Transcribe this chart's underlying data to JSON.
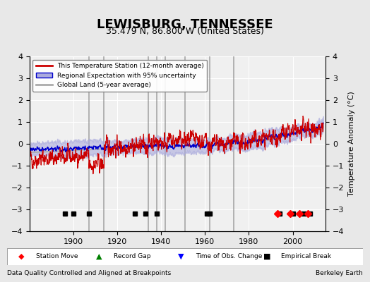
{
  "title": "LEWISBURG, TENNESSEE",
  "subtitle": "35.479 N, 86.800 W (United States)",
  "ylabel": "Temperature Anomaly (°C)",
  "xlabel_bottom_left": "Data Quality Controlled and Aligned at Breakpoints",
  "xlabel_bottom_right": "Berkeley Earth",
  "ylim": [
    -4,
    4
  ],
  "xlim": [
    1880,
    2015
  ],
  "xticks": [
    1900,
    1920,
    1940,
    1960,
    1980,
    2000
  ],
  "yticks": [
    -4,
    -3,
    -2,
    -1,
    0,
    1,
    2,
    3,
    4
  ],
  "background_color": "#e8e8e8",
  "plot_bg_color": "#f0f0f0",
  "grid_color": "#ffffff",
  "vertical_lines": [
    1907,
    1914,
    1934,
    1938,
    1942,
    1951,
    1962,
    1973
  ],
  "empirical_breaks": [
    1896,
    1900,
    1907,
    1928,
    1933,
    1938,
    1961,
    1962,
    1994,
    2000,
    2005,
    2008
  ],
  "station_moves": [
    1993,
    1999,
    2003,
    2007
  ],
  "red_line_color": "#cc0000",
  "blue_line_color": "#0000cc",
  "blue_fill_color": "#aaaadd",
  "gray_line_color": "#aaaaaa",
  "seed": 42
}
